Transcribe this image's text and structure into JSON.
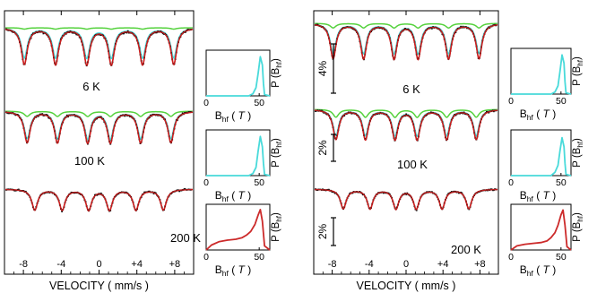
{
  "chart_data": [
    {
      "type": "line",
      "panel": "left",
      "xlabel": "VELOCITY ( mm/s )",
      "xlim": [
        -10,
        10
      ],
      "xticks": [
        "-8",
        "-4",
        "0",
        "+4",
        "+8"
      ],
      "xtick_values": [
        -8,
        -4,
        0,
        4,
        8
      ],
      "legend": "none",
      "grid": false,
      "spectra": [
        {
          "label": "6 K",
          "line_positions": [
            -7.9,
            -4.6,
            -1.3,
            1.3,
            4.6,
            7.9
          ],
          "series": [
            {
              "color": "#cc1e1e",
              "depth_pct": 5.6
            },
            {
              "color": "#48dada",
              "depth_pct": 4.6
            },
            {
              "color": "#55d23e",
              "depth_pct": 0.2
            }
          ]
        },
        {
          "label": "100 K",
          "line_positions": [
            -7.6,
            -4.4,
            -1.2,
            1.2,
            4.4,
            7.6
          ],
          "series": [
            {
              "color": "#cc1e1e",
              "depth_pct": 4.8
            },
            {
              "color": "#48dada",
              "depth_pct": 4.2
            },
            {
              "color": "#55d23e",
              "depth_pct": 0.8
            }
          ]
        },
        {
          "label": "200 K",
          "line_positions": [
            -6.8,
            -3.9,
            -1.1,
            1.1,
            3.9,
            6.8
          ],
          "series": [
            {
              "color": "#cc1e1e",
              "depth_pct": 3.2
            }
          ]
        }
      ]
    },
    {
      "type": "line",
      "panel": "right",
      "xlabel": "VELOCITY ( mm/s )",
      "xlim": [
        -10,
        10
      ],
      "xticks": [
        "-8",
        "-4",
        "0",
        "+4",
        "+8"
      ],
      "xtick_values": [
        -8,
        -4,
        0,
        4,
        8
      ],
      "scale_bars": [
        "4%",
        "2%",
        "2%"
      ],
      "legend": "none",
      "grid": false,
      "spectra": [
        {
          "label": "6 K",
          "line_positions": [
            -7.9,
            -4.6,
            -1.3,
            1.3,
            4.6,
            7.9
          ],
          "series": [
            {
              "color": "#cc1e1e",
              "depth_pct": 5.4
            },
            {
              "color": "#48dada",
              "depth_pct": 4.6
            },
            {
              "color": "#55d23e",
              "depth_pct": 0.7
            }
          ]
        },
        {
          "label": "100 K",
          "line_positions": [
            -7.6,
            -4.4,
            -1.2,
            1.2,
            4.4,
            7.6
          ],
          "series": [
            {
              "color": "#cc1e1e",
              "depth_pct": 4.6
            },
            {
              "color": "#48dada",
              "depth_pct": 4.0
            },
            {
              "color": "#55d23e",
              "depth_pct": 1.2
            }
          ]
        },
        {
          "label": "200 K",
          "line_positions": [
            -6.8,
            -3.9,
            -1.1,
            1.1,
            3.9,
            6.8
          ],
          "series": [
            {
              "color": "#cc1e1e",
              "depth_pct": 3.0
            }
          ]
        }
      ]
    },
    {
      "type": "area",
      "panel": "left-distributions",
      "xlabel": "B",
      "xlabel_sub": "hf",
      "xlabel_unit": "T",
      "ylabel": "P (B",
      "ylabel_sub": "hf",
      "xlim": [
        0,
        60
      ],
      "xticks": [
        "0",
        "50"
      ],
      "xtick_values": [
        0,
        50
      ],
      "distributions": [
        {
          "color": "#48dada",
          "x": [
            0,
            40,
            44,
            47,
            49,
            51,
            53,
            54,
            55,
            60
          ],
          "y": [
            0,
            0,
            0.05,
            0.2,
            0.55,
            0.95,
            0.75,
            0.3,
            0.03,
            0
          ]
        },
        {
          "color": "#48dada",
          "x": [
            0,
            40,
            44,
            47,
            49,
            51,
            53,
            54,
            55,
            60
          ],
          "y": [
            0,
            0,
            0.05,
            0.2,
            0.6,
            0.95,
            0.7,
            0.3,
            0.03,
            0
          ]
        },
        {
          "color": "#cc2a2a",
          "x": [
            0,
            5,
            12,
            20,
            28,
            34,
            38,
            42,
            46,
            49,
            51,
            53,
            55,
            60
          ],
          "y": [
            0,
            0.12,
            0.2,
            0.24,
            0.26,
            0.3,
            0.36,
            0.45,
            0.62,
            0.85,
            0.98,
            0.7,
            0.1,
            0
          ]
        }
      ]
    },
    {
      "type": "area",
      "panel": "right-distributions",
      "xlabel": "B",
      "xlabel_sub": "hf",
      "xlabel_unit": "T",
      "ylabel": "P (B",
      "ylabel_sub": "hf",
      "xlim": [
        0,
        60
      ],
      "xticks": [
        "0",
        "50"
      ],
      "xtick_values": [
        0,
        50
      ],
      "distributions": [
        {
          "color": "#48dada",
          "x": [
            0,
            40,
            44,
            47,
            49,
            51,
            53,
            54,
            55,
            60
          ],
          "y": [
            0,
            0,
            0.05,
            0.2,
            0.55,
            0.95,
            0.75,
            0.3,
            0.03,
            0
          ]
        },
        {
          "color": "#48dada",
          "x": [
            0,
            40,
            44,
            47,
            49,
            51,
            53,
            54,
            55,
            60
          ],
          "y": [
            0,
            0,
            0.08,
            0.25,
            0.6,
            0.92,
            0.7,
            0.3,
            0.03,
            0
          ]
        },
        {
          "color": "#cc2a2a",
          "x": [
            0,
            6,
            14,
            22,
            30,
            36,
            40,
            44,
            47,
            50,
            52,
            54,
            56,
            60
          ],
          "y": [
            0,
            0.1,
            0.14,
            0.16,
            0.18,
            0.22,
            0.3,
            0.42,
            0.6,
            0.85,
            0.97,
            0.6,
            0.08,
            0
          ]
        }
      ]
    }
  ]
}
